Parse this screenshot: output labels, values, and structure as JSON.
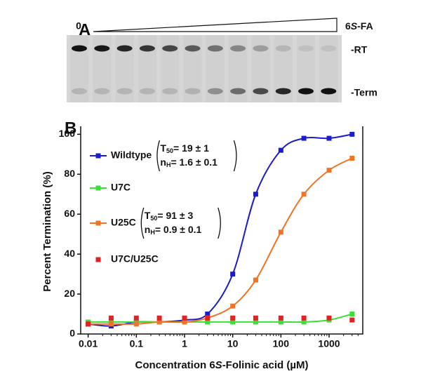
{
  "panel_a": {
    "label": "A",
    "zero_label": "0",
    "ligand_label": [
      "6",
      "S",
      "-FA"
    ],
    "band_labels": [
      "-RT",
      "-Term"
    ]
  },
  "chart_data": {
    "type": "scatter",
    "panel_label": "B",
    "xlabel": [
      "Concentration 6",
      "S",
      "-Folinic acid (µM)"
    ],
    "ylabel": "Percent Termination (%)",
    "log_x": true,
    "x": [
      0.01,
      0.03,
      0.1,
      0.3,
      1,
      3,
      10,
      30,
      100,
      300,
      1000,
      3000
    ],
    "xlim": [
      0.007,
      5000
    ],
    "xticks": [
      0.01,
      0.1,
      1,
      10,
      100,
      1000
    ],
    "ylim": [
      0,
      104
    ],
    "yticks": [
      0,
      20,
      40,
      60,
      80,
      100
    ],
    "fit_labels": [
      [
        "T",
        "50"
      ],
      [
        "n",
        "H"
      ]
    ],
    "series": [
      {
        "name": "Wildtype",
        "color": "#1c1ccc",
        "show_line": true,
        "fit": [
          "= 19 ± 1",
          "= 1.6 ± 0.1"
        ],
        "values": [
          5,
          4,
          6,
          6,
          7,
          10,
          30,
          70,
          92,
          98,
          98,
          100
        ]
      },
      {
        "name": "U7C",
        "color": "#38e038",
        "show_line": true,
        "values": [
          6,
          6,
          6,
          6,
          6,
          6,
          6,
          6,
          6,
          6,
          7,
          10
        ]
      },
      {
        "name": "U25C",
        "color": "#f07422",
        "show_line": true,
        "fit": [
          "= 91 ± 3",
          "= 0.9 ± 0.1"
        ],
        "values": [
          5,
          5,
          5,
          6,
          6,
          8,
          14,
          27,
          51,
          70,
          82,
          88
        ]
      },
      {
        "name": "U7C/U25C",
        "color": "#e02222",
        "show_line": false,
        "values": [
          5,
          8,
          8,
          8,
          8,
          8,
          8,
          8,
          8,
          8,
          8,
          7
        ]
      }
    ]
  }
}
